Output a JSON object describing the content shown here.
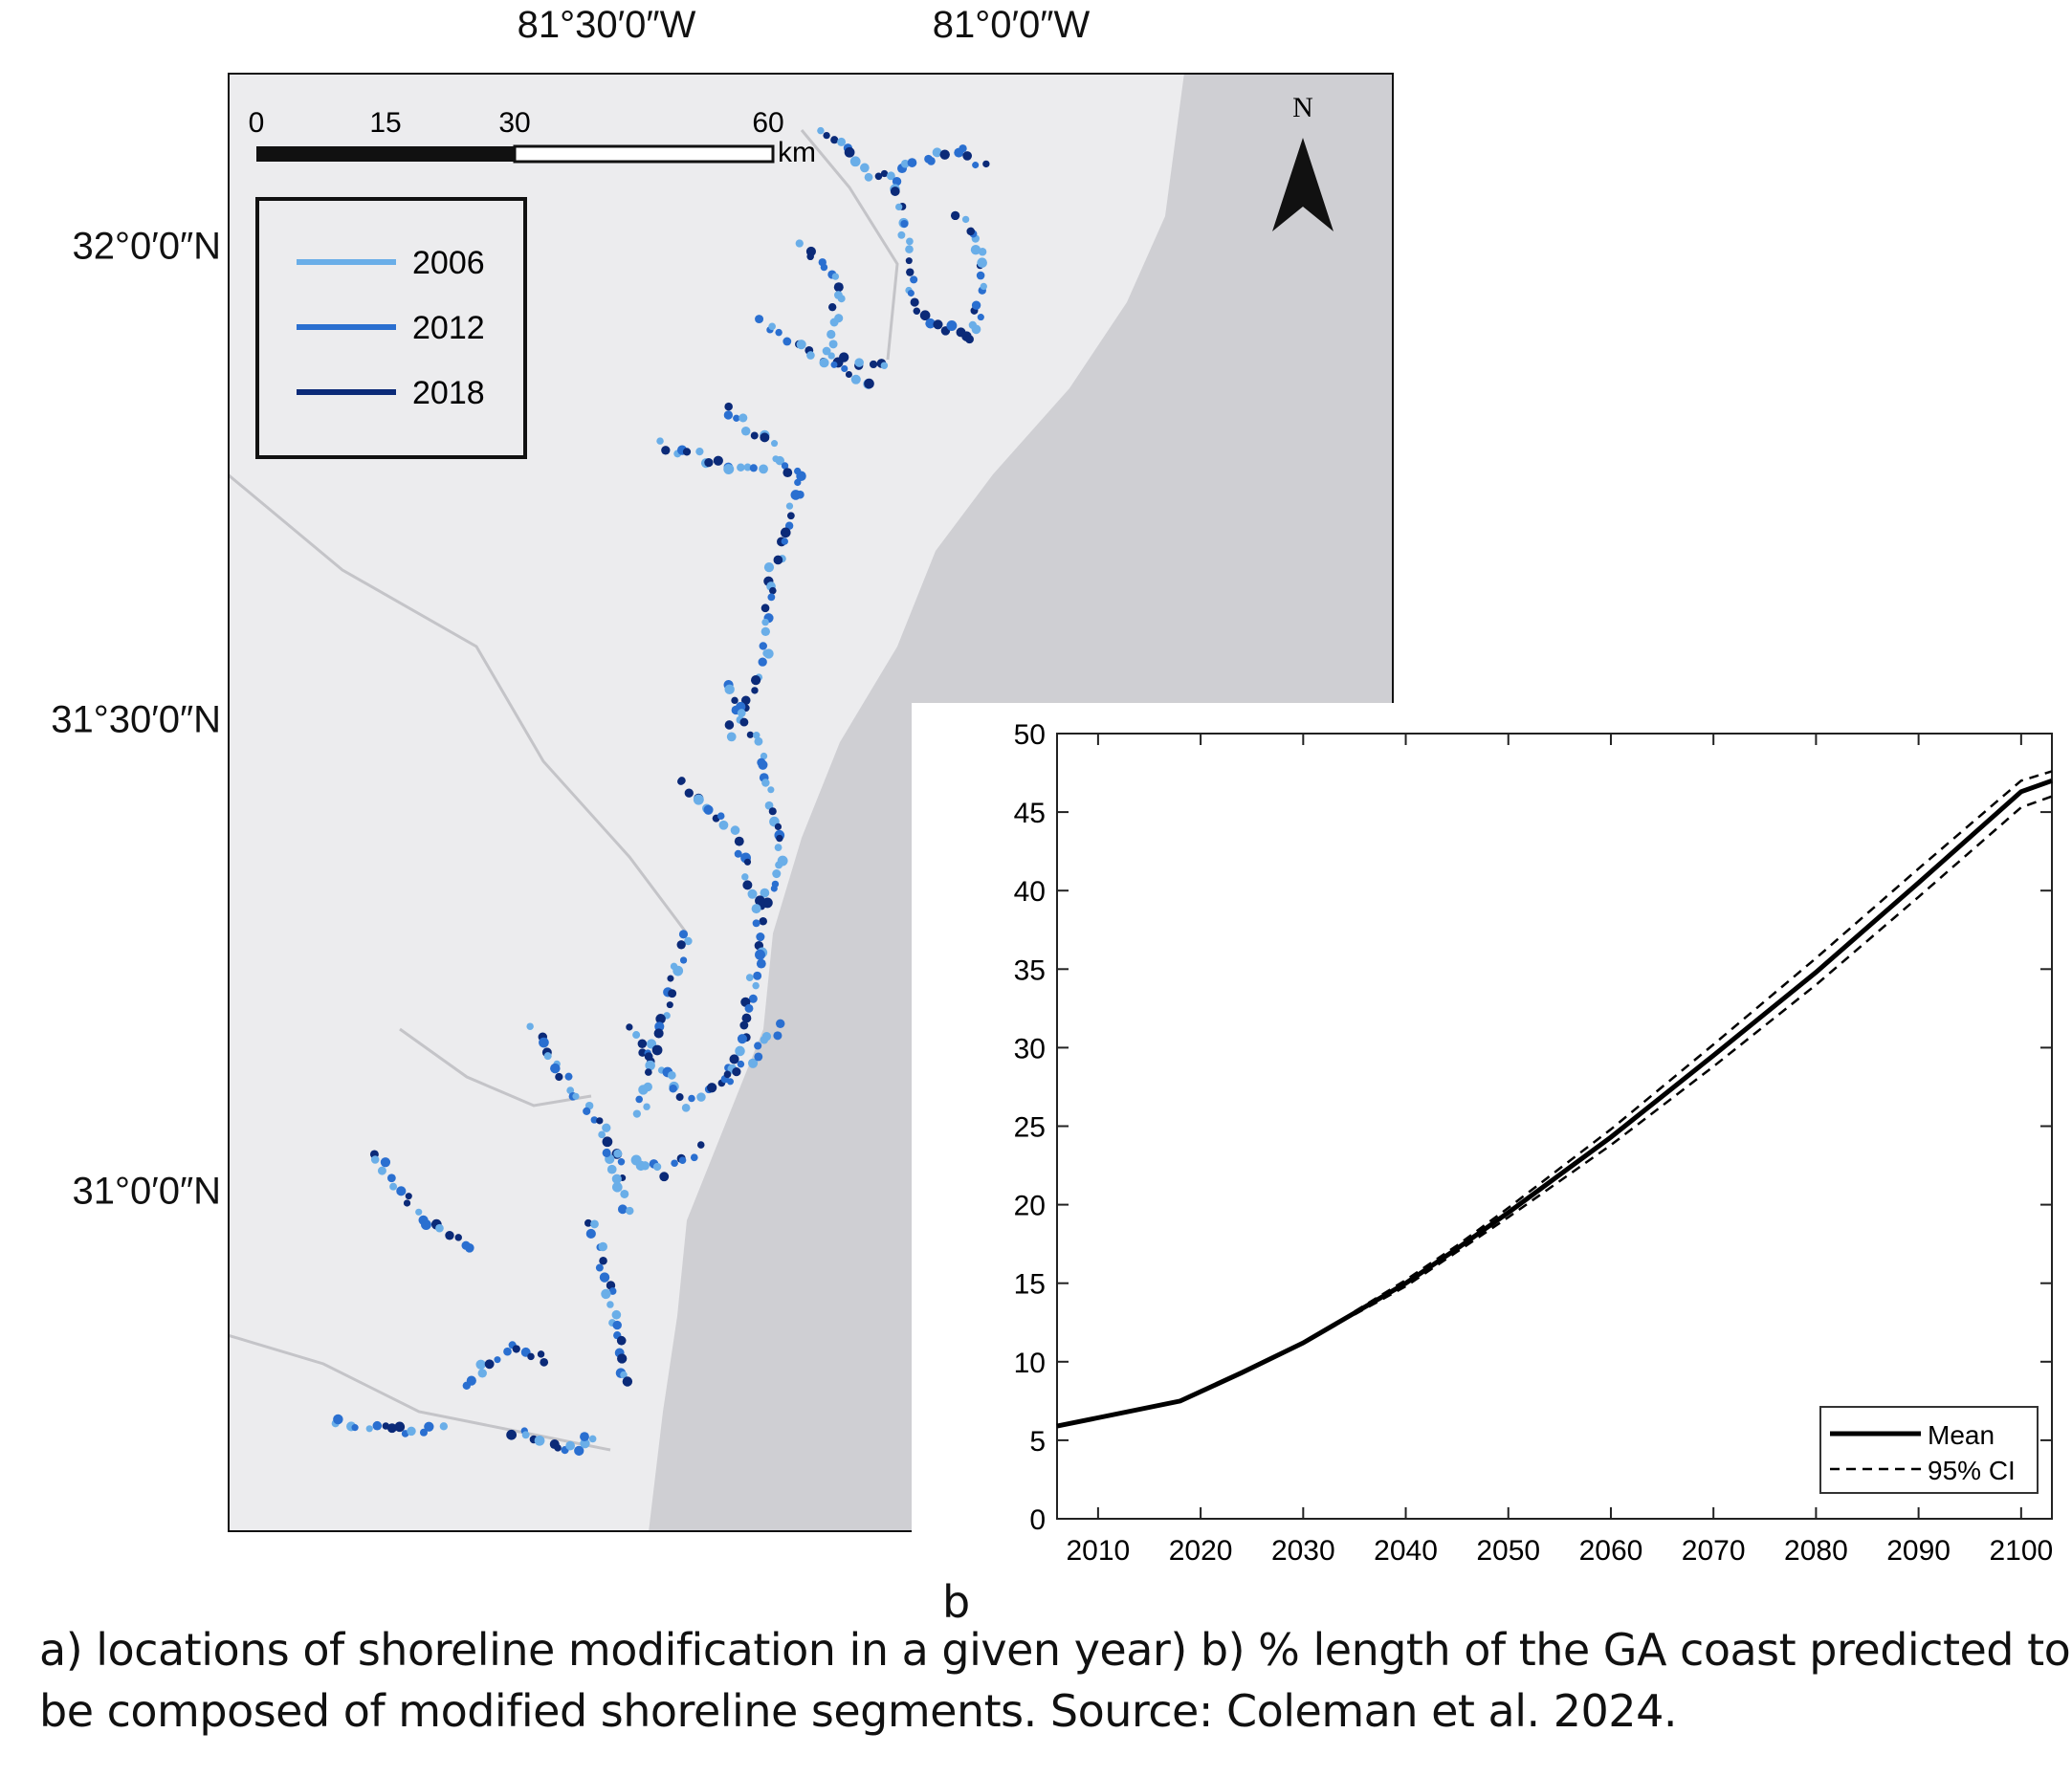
{
  "map": {
    "lon_labels": [
      "81°30′0″W",
      "81°0′0″W"
    ],
    "lat_labels": [
      "32°0′0″N",
      "31°30′0″N",
      "31°0′0″N"
    ],
    "scale_bar": {
      "ticks": [
        "0",
        "15",
        "30",
        "60"
      ],
      "unit": "km"
    },
    "north_label": "N",
    "legend": [
      {
        "label": "2006",
        "color": "#6aaee8"
      },
      {
        "label": "2012",
        "color": "#2a6fd0"
      },
      {
        "label": "2018",
        "color": "#0b2a78"
      }
    ],
    "colors": {
      "ocean": "#cfcfd3",
      "land": "#ececee",
      "rivers": "#c4c4c8"
    }
  },
  "chart_data": {
    "type": "line",
    "xlim": [
      2006,
      2103
    ],
    "ylim": [
      0,
      50
    ],
    "xticks": [
      "2010",
      "2020",
      "2030",
      "2040",
      "2050",
      "2060",
      "2070",
      "2080",
      "2090",
      "2100"
    ],
    "yticks": [
      "0",
      "5",
      "10",
      "15",
      "20",
      "25",
      "30",
      "35",
      "40",
      "45",
      "50"
    ],
    "grid": false,
    "legend_position": "bottom-right",
    "series": [
      {
        "name": "Mean",
        "style": "solid",
        "x": [
          2006,
          2018,
          2024,
          2030,
          2035,
          2040,
          2045,
          2050,
          2055,
          2060,
          2070,
          2080,
          2090,
          2100,
          2103
        ],
        "y": [
          5.9,
          7.5,
          9.3,
          11.2,
          13.1,
          15.0,
          17.2,
          19.5,
          21.9,
          24.3,
          29.5,
          34.8,
          40.5,
          46.3,
          47.0
        ]
      },
      {
        "name": "95% CI",
        "style": "dashed",
        "x": [
          2035,
          2040,
          2045,
          2050,
          2055,
          2060,
          2070,
          2080,
          2090,
          2100,
          2103
        ],
        "y": [
          13.2,
          15.2,
          17.4,
          19.8,
          22.3,
          24.8,
          30.2,
          35.7,
          41.4,
          47.0,
          47.6
        ]
      },
      {
        "name": "",
        "style": "dashed",
        "x": [
          2035,
          2040,
          2045,
          2050,
          2055,
          2060,
          2070,
          2080,
          2090,
          2100,
          2103
        ],
        "y": [
          13.0,
          14.8,
          17.0,
          19.2,
          21.5,
          23.8,
          28.8,
          34.0,
          39.6,
          45.3,
          46.0
        ]
      }
    ]
  },
  "panel_label": "b",
  "caption": {
    "line1": "a) locations of shoreline modification in a given year) b) % length of the GA coast predicted to",
    "line2": "be composed of modified shoreline segments. Source: Coleman et al. 2024."
  }
}
